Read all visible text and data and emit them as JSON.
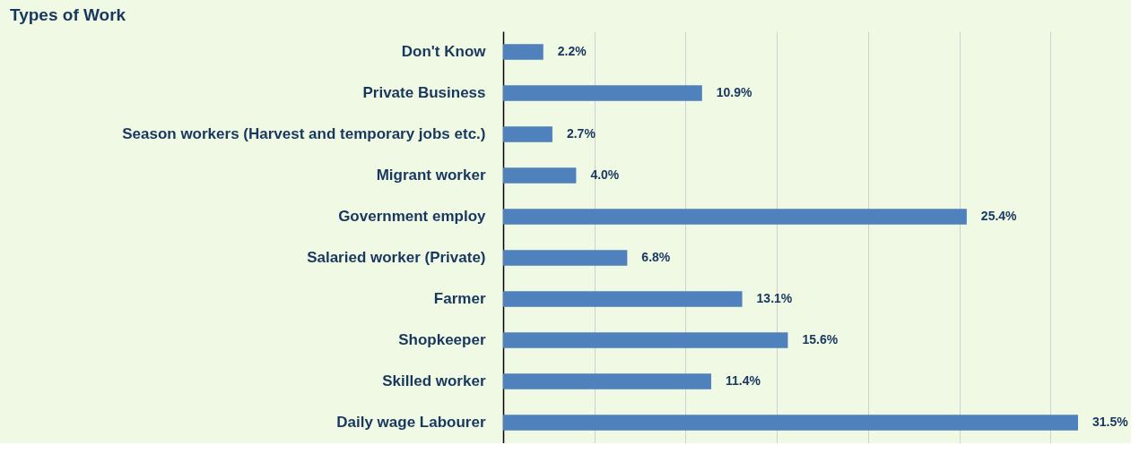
{
  "chart_data": {
    "type": "bar",
    "orientation": "horizontal",
    "title": "Types of Work",
    "categories": [
      "Don't Know",
      "Private Business",
      "Season workers (Harvest and temporary jobs etc.)",
      "Migrant worker",
      "Government employ",
      "Salaried worker (Private)",
      "Farmer",
      "Shopkeeper",
      "Skilled worker",
      "Daily wage Labourer"
    ],
    "values": [
      2.2,
      10.9,
      2.7,
      4.0,
      25.4,
      6.8,
      13.1,
      15.6,
      11.4,
      31.5
    ],
    "value_labels": [
      "2.2%",
      "10.9%",
      "2.7%",
      "4.0%",
      "25.4%",
      "6.8%",
      "13.1%",
      "15.6%",
      "11.4%",
      "31.5%"
    ],
    "color": "#4f81bd",
    "xlim": [
      0,
      34.4
    ],
    "xticks": [
      {
        "value": 0,
        "label": null
      },
      {
        "value": 5,
        "label": null
      },
      {
        "value": 10,
        "label": null
      },
      {
        "value": 15,
        "label": null
      },
      {
        "value": 20,
        "label": null
      },
      {
        "value": 25,
        "label": null
      },
      {
        "value": 30,
        "label": null
      }
    ],
    "grid": "x",
    "tick_labels": "y"
  }
}
